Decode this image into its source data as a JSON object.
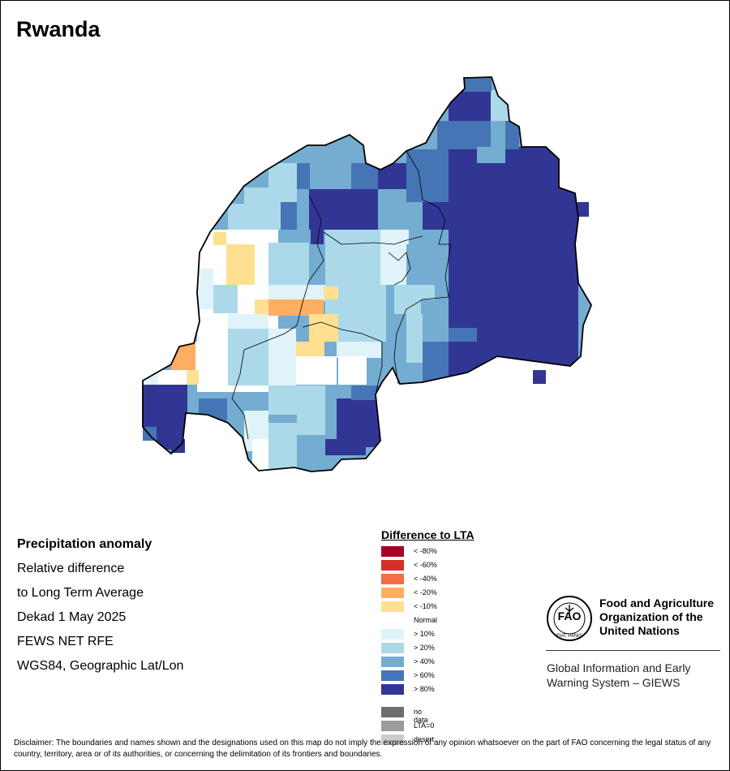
{
  "title": "Rwanda",
  "info": {
    "heading": "Precipitation anomaly",
    "line1": "Relative difference",
    "line2": "to Long Term Average",
    "period": "Dekad 1 May 2025",
    "source": "FEWS NET RFE",
    "projection": "WGS84, Geographic Lat/Lon"
  },
  "legend": {
    "title": "Difference to LTA",
    "items": [
      {
        "label": "< -80%",
        "color": "#a50026"
      },
      {
        "label": "< -60%",
        "color": "#d73027"
      },
      {
        "label": "< -40%",
        "color": "#f46d43"
      },
      {
        "label": "< -20%",
        "color": "#fdae61"
      },
      {
        "label": "< -10%",
        "color": "#fee090"
      },
      {
        "label": "Normal",
        "color": "#ffffff"
      },
      {
        "label": "> 10%",
        "color": "#e0f3f8"
      },
      {
        "label": "> 20%",
        "color": "#abd9e9"
      },
      {
        "label": "> 40%",
        "color": "#74add1"
      },
      {
        "label": "> 60%",
        "color": "#4575b4"
      },
      {
        "label": "> 80%",
        "color": "#313695"
      }
    ],
    "extra": [
      {
        "label": "no data",
        "color": "#6e6e6e"
      },
      {
        "label": "LTA=0",
        "color": "#9c9c9c"
      },
      {
        "label": "desert",
        "color": "#cccccc"
      }
    ]
  },
  "fao": {
    "logo_text": "FIAT PANIS",
    "org_line1": "Food and Agriculture",
    "org_line2": "Organization of the",
    "org_line3": "United Nations",
    "giews_line1": "Global Information and Early",
    "giews_line2": "Warning System – GIEWS"
  },
  "disclaimer": "Disclaimer: The boundaries and names shown and the designations used on this map do not imply the expression of any opinion whatsoever on the part of FAO concerning the legal status of any country, territory, area or of its authorities, or concerning the delimitation of its frontiers and boundaries."
}
